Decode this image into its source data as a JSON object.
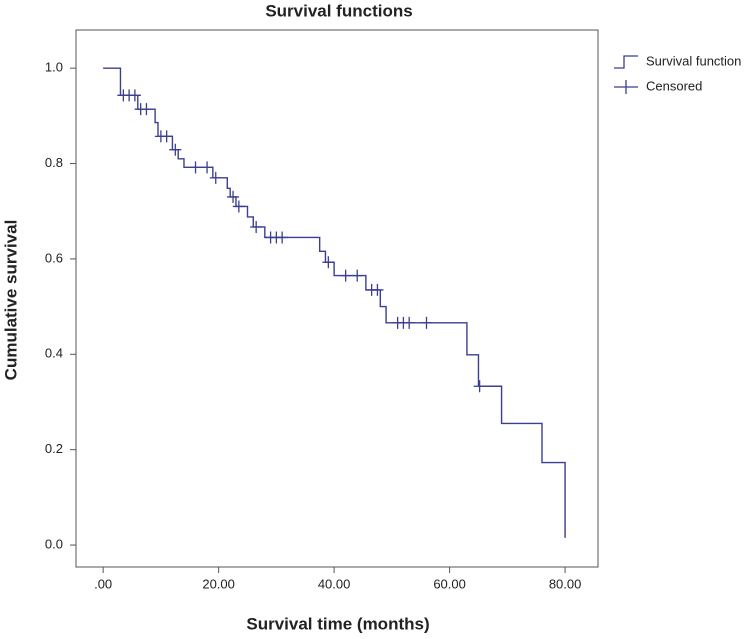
{
  "chart_data": {
    "type": "step",
    "title": "Survival functions",
    "x_label": "Survival time (months)",
    "y_label": "Cumulative survival",
    "xlim": [
      -4.7,
      85.7
    ],
    "ylim": [
      -0.046,
      1.08
    ],
    "xticks": [
      {
        "value": 0,
        "label": ".00"
      },
      {
        "value": 20,
        "label": "20.00"
      },
      {
        "value": 40,
        "label": "40.00"
      },
      {
        "value": 60,
        "label": "60.00"
      },
      {
        "value": 80,
        "label": "80.00"
      }
    ],
    "yticks": [
      {
        "value": 0,
        "label": "0.0"
      },
      0.2,
      0.4,
      0.6,
      0.8,
      {
        "value": 1,
        "label": "1.0"
      }
    ],
    "grid": false,
    "legend": "right",
    "series": [
      {
        "name": "Survival function",
        "color": "#3b3f8f",
        "x": [
          0,
          3,
          6,
          9,
          9.5,
          12,
          13,
          14,
          19,
          21.5,
          22,
          23,
          25,
          26,
          28,
          37.5,
          38.5,
          40,
          45.5,
          48,
          49,
          63,
          65,
          69,
          76,
          80
        ],
        "values": [
          1.0,
          0.943,
          0.914,
          0.886,
          0.857,
          0.829,
          0.81,
          0.792,
          0.77,
          0.748,
          0.73,
          0.71,
          0.688,
          0.667,
          0.645,
          0.616,
          0.593,
          0.565,
          0.535,
          0.5,
          0.466,
          0.399,
          0.333,
          0.255,
          0.173,
          0.015
        ]
      },
      {
        "name": "Censored",
        "color": "#3b3f8f",
        "marker": "+",
        "x": [
          3.5,
          4.5,
          5.5,
          6.5,
          7.5,
          10,
          11,
          12.5,
          16,
          18,
          19.5,
          22.5,
          23.5,
          26.5,
          29,
          30,
          31,
          39,
          42,
          44,
          46.5,
          47.5,
          51,
          52,
          53,
          56,
          65.2
        ],
        "values": [
          0.943,
          0.943,
          0.943,
          0.914,
          0.914,
          0.857,
          0.857,
          0.829,
          0.792,
          0.792,
          0.77,
          0.73,
          0.71,
          0.667,
          0.645,
          0.645,
          0.645,
          0.593,
          0.565,
          0.565,
          0.535,
          0.535,
          0.466,
          0.466,
          0.466,
          0.466,
          0.333
        ]
      }
    ]
  }
}
